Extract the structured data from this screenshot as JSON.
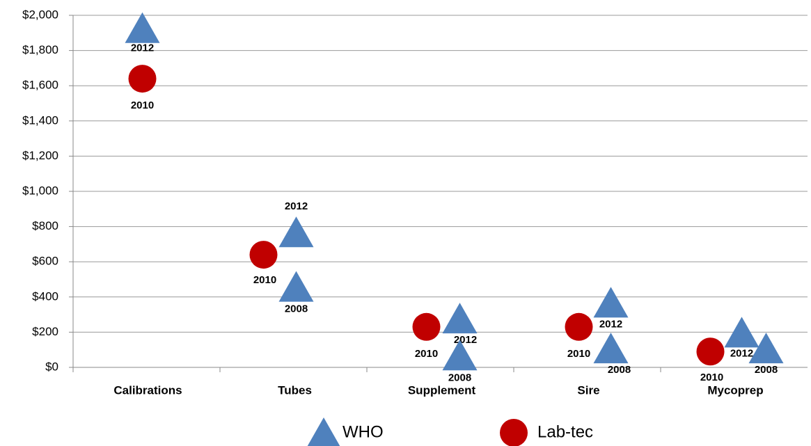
{
  "chart_data": {
    "type": "category-scatter",
    "categories": [
      "Calibrations",
      "Tubes",
      "Supplement",
      "Sire",
      "Mycoprep"
    ],
    "ylim": [
      0,
      2000
    ],
    "yticks": [
      {
        "value": 0,
        "label": "$0"
      },
      {
        "value": 200,
        "label": "$200"
      },
      {
        "value": 400,
        "label": "$400"
      },
      {
        "value": 600,
        "label": "$600"
      },
      {
        "value": 800,
        "label": "$800"
      },
      {
        "value": 1000,
        "label": "$1,000"
      },
      {
        "value": 1200,
        "label": "$1,200"
      },
      {
        "value": 1400,
        "label": "$1,400"
      },
      {
        "value": 1600,
        "label": "$1,600"
      },
      {
        "value": 1800,
        "label": "$1,800"
      },
      {
        "value": 2000,
        "label": "$2,000"
      }
    ],
    "grid": true,
    "legend": "bottom",
    "series": [
      {
        "name": "WHO",
        "marker": "triangle",
        "color": "#4f81bd",
        "points": [
          {
            "category": "Calibrations",
            "value": 1930,
            "label": "2012"
          },
          {
            "category": "Tubes",
            "value": 770,
            "label": "2012"
          },
          {
            "category": "Tubes",
            "value": 460,
            "label": "2008"
          },
          {
            "category": "Supplement",
            "value": 280,
            "label": "2012"
          },
          {
            "category": "Supplement",
            "value": 70,
            "label": "2008"
          },
          {
            "category": "Sire",
            "value": 370,
            "label": "2012"
          },
          {
            "category": "Sire",
            "value": 110,
            "label": "2008"
          },
          {
            "category": "Mycoprep",
            "value": 200,
            "label": "2012"
          },
          {
            "category": "Mycoprep",
            "value": 110,
            "label": "2008"
          }
        ]
      },
      {
        "name": "Lab-tec",
        "marker": "circle",
        "color": "#c00000",
        "points": [
          {
            "category": "Calibrations",
            "value": 1640,
            "label": "2010"
          },
          {
            "category": "Tubes",
            "value": 640,
            "label": "2010"
          },
          {
            "category": "Supplement",
            "value": 230,
            "label": "2010"
          },
          {
            "category": "Sire",
            "value": 230,
            "label": "2010"
          },
          {
            "category": "Mycoprep",
            "value": 90,
            "label": "2010"
          }
        ]
      }
    ]
  }
}
